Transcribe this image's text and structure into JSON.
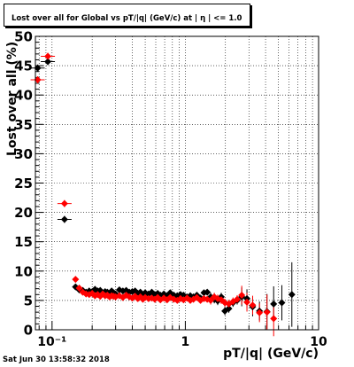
{
  "chart_data": {
    "type": "scatter",
    "title": "Lost over all for Global vs pT/|q| (GeV/c) at | η | <= 1.0",
    "xlabel": "pT/|q| (GeV/c)",
    "ylabel": "Lost over all (%)",
    "xscale": "log",
    "xlim": [
      0.075,
      10
    ],
    "ylim": [
      0,
      50
    ],
    "grid": true,
    "yticks": [
      "0",
      "5",
      "10",
      "15",
      "20",
      "25",
      "30",
      "35",
      "40",
      "45",
      "50"
    ],
    "xticks": [
      "10⁻¹",
      "1",
      "10"
    ],
    "series": [
      {
        "color": "#000000",
        "points": [
          [
            0.078,
            44.6
          ],
          [
            0.093,
            45.7
          ],
          [
            0.124,
            18.8
          ],
          [
            0.15,
            7.3
          ],
          [
            0.16,
            6.8
          ],
          [
            0.17,
            6.7
          ],
          [
            0.18,
            6.4
          ],
          [
            0.19,
            6.6
          ],
          [
            0.2,
            6.5
          ],
          [
            0.21,
            6.9
          ],
          [
            0.22,
            6.6
          ],
          [
            0.23,
            6.7
          ],
          [
            0.24,
            6.3
          ],
          [
            0.25,
            6.5
          ],
          [
            0.26,
            6.4
          ],
          [
            0.27,
            6.2
          ],
          [
            0.28,
            6.6
          ],
          [
            0.29,
            6.3
          ],
          [
            0.3,
            6.1
          ],
          [
            0.32,
            6.8
          ],
          [
            0.34,
            6.6
          ],
          [
            0.36,
            6.7
          ],
          [
            0.38,
            6.4
          ],
          [
            0.4,
            6.5
          ],
          [
            0.42,
            6.6
          ],
          [
            0.44,
            6.2
          ],
          [
            0.46,
            6.4
          ],
          [
            0.48,
            6.0
          ],
          [
            0.5,
            6.3
          ],
          [
            0.53,
            6.1
          ],
          [
            0.56,
            6.4
          ],
          [
            0.59,
            6.0
          ],
          [
            0.62,
            6.2
          ],
          [
            0.65,
            5.9
          ],
          [
            0.69,
            6.1
          ],
          [
            0.73,
            5.8
          ],
          [
            0.77,
            6.3
          ],
          [
            0.82,
            5.9
          ],
          [
            0.87,
            5.8
          ],
          [
            0.92,
            6.0
          ],
          [
            0.97,
            5.9
          ],
          [
            1.03,
            5.6
          ],
          [
            1.09,
            5.8
          ],
          [
            1.15,
            5.6
          ],
          [
            1.22,
            5.9
          ],
          [
            1.3,
            5.4
          ],
          [
            1.38,
            6.3
          ],
          [
            1.46,
            6.4
          ],
          [
            1.55,
            5.6
          ],
          [
            1.65,
            5.2
          ],
          [
            1.75,
            4.9
          ],
          [
            1.86,
            5.6
          ],
          [
            1.98,
            3.2
          ],
          [
            2.12,
            3.6
          ],
          [
            2.28,
            4.6
          ],
          [
            2.45,
            5.0
          ],
          [
            2.65,
            5.6
          ],
          [
            2.9,
            5.3
          ],
          [
            3.2,
            3.9
          ],
          [
            3.6,
            3.2
          ],
          [
            4.1,
            3.1
          ],
          [
            4.6,
            4.4
          ],
          [
            5.3,
            4.6
          ],
          [
            6.3,
            6.0
          ]
        ]
      },
      {
        "color": "#ff0000",
        "points": [
          [
            0.078,
            42.6
          ],
          [
            0.093,
            46.6
          ],
          [
            0.124,
            21.5
          ],
          [
            0.15,
            8.6
          ],
          [
            0.16,
            7.1
          ],
          [
            0.17,
            6.4
          ],
          [
            0.18,
            6.1
          ],
          [
            0.19,
            6.0
          ],
          [
            0.2,
            6.2
          ],
          [
            0.21,
            5.8
          ],
          [
            0.22,
            6.0
          ],
          [
            0.23,
            5.7
          ],
          [
            0.24,
            6.1
          ],
          [
            0.25,
            5.8
          ],
          [
            0.26,
            5.9
          ],
          [
            0.27,
            5.6
          ],
          [
            0.28,
            5.8
          ],
          [
            0.29,
            5.7
          ],
          [
            0.3,
            5.6
          ],
          [
            0.32,
            5.8
          ],
          [
            0.34,
            5.5
          ],
          [
            0.36,
            5.9
          ],
          [
            0.38,
            5.6
          ],
          [
            0.4,
            5.4
          ],
          [
            0.42,
            5.7
          ],
          [
            0.44,
            5.3
          ],
          [
            0.46,
            5.6
          ],
          [
            0.48,
            5.2
          ],
          [
            0.5,
            5.5
          ],
          [
            0.53,
            5.3
          ],
          [
            0.56,
            5.4
          ],
          [
            0.59,
            5.2
          ],
          [
            0.62,
            5.5
          ],
          [
            0.65,
            5.1
          ],
          [
            0.69,
            5.4
          ],
          [
            0.73,
            5.1
          ],
          [
            0.77,
            5.5
          ],
          [
            0.82,
            5.2
          ],
          [
            0.87,
            5.0
          ],
          [
            0.92,
            5.3
          ],
          [
            0.97,
            5.1
          ],
          [
            1.03,
            5.4
          ],
          [
            1.09,
            5.0
          ],
          [
            1.15,
            5.2
          ],
          [
            1.22,
            5.5
          ],
          [
            1.3,
            5.0
          ],
          [
            1.38,
            5.3
          ],
          [
            1.46,
            5.2
          ],
          [
            1.55,
            5.0
          ],
          [
            1.65,
            5.6
          ],
          [
            1.75,
            5.3
          ],
          [
            1.86,
            5.1
          ],
          [
            1.98,
            4.6
          ],
          [
            2.12,
            4.4
          ],
          [
            2.28,
            4.8
          ],
          [
            2.45,
            5.2
          ],
          [
            2.65,
            5.9
          ],
          [
            2.9,
            4.7
          ],
          [
            3.2,
            4.2
          ],
          [
            3.6,
            2.9
          ],
          [
            4.1,
            3.0
          ],
          [
            4.6,
            1.9
          ]
        ]
      }
    ]
  },
  "footer": {
    "datestamp": "Sat Jun 30 13:58:32 2018"
  }
}
